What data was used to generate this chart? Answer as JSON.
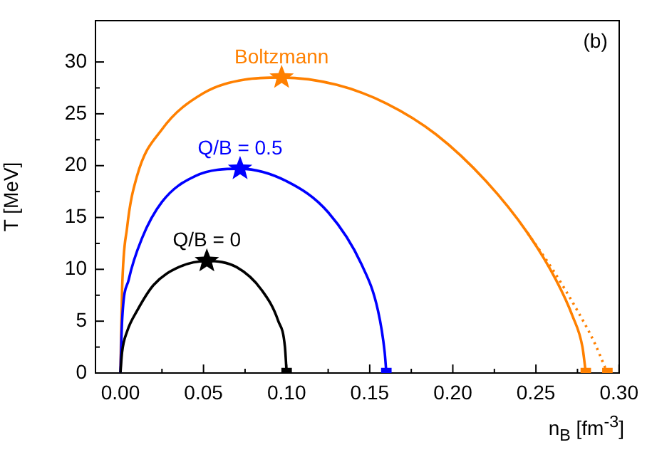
{
  "chart_data": {
    "type": "line",
    "xlabel": "n$_{B}$ [fm$^{-3}$]",
    "ylabel": "T [MeV]",
    "annotations": [
      "(b)"
    ],
    "xlim": [
      -0.015,
      0.3
    ],
    "ylim": [
      0,
      34
    ],
    "xticks": [
      {
        "value": 0,
        "label": "0.00"
      },
      {
        "value": 0.05,
        "label": "0.05"
      },
      {
        "value": 0.1,
        "label": "0.10"
      },
      {
        "value": 0.15,
        "label": "0.15"
      },
      {
        "value": 0.2,
        "label": "0.20"
      },
      {
        "value": 0.25,
        "label": "0.25"
      },
      {
        "value": 0.3,
        "label": "0.30"
      }
    ],
    "yticks": [
      0,
      5,
      10,
      15,
      20,
      25,
      30
    ],
    "grid": false,
    "legend": false,
    "series": [
      {
        "name": "Q/B = 0",
        "color": "#000000",
        "marker": "none",
        "line_style": "solid",
        "x": [
          0,
          0.001,
          0.004,
          0.01,
          0.02,
          0.035,
          0.052,
          0.07,
          0.085,
          0.095,
          0.099,
          0.1
        ],
        "values": [
          0,
          2,
          4,
          6,
          8.5,
          10.2,
          10.8,
          10.2,
          8,
          5,
          2.5,
          0
        ]
      },
      {
        "name": "Q/B = 0.5",
        "color": "#0000ff",
        "marker": "none",
        "line_style": "solid",
        "x": [
          0,
          0.001,
          0.005,
          0.013,
          0.025,
          0.045,
          0.072,
          0.1,
          0.125,
          0.145,
          0.155,
          0.159,
          0.16
        ],
        "values": [
          0,
          5,
          9,
          13,
          16.5,
          19,
          19.7,
          18.5,
          15.5,
          10.5,
          6,
          2,
          0
        ]
      },
      {
        "name": "Boltzmann",
        "color": "#ff8000",
        "marker": "none",
        "line_style": "solid",
        "x": [
          0,
          0.001,
          0.004,
          0.01,
          0.025,
          0.05,
          0.075,
          0.097,
          0.13,
          0.16,
          0.19,
          0.22,
          0.245,
          0.262,
          0.272,
          0.278,
          0.28
        ],
        "values": [
          0,
          8,
          14,
          19,
          23.5,
          27,
          28.3,
          28.5,
          27.8,
          26,
          23,
          18.5,
          13.5,
          9,
          5.5,
          2.5,
          0
        ]
      },
      {
        "color": "#ff8000",
        "marker": "none",
        "line_style": "dotted",
        "x": [
          0.245,
          0.26,
          0.275,
          0.285,
          0.293
        ],
        "values": [
          13.5,
          10,
          6,
          3,
          0
        ]
      },
      {
        "type": "scatter",
        "color": "#000000",
        "marker": "star",
        "x": [
          0.052
        ],
        "values": [
          10.8
        ]
      },
      {
        "type": "scatter",
        "color": "#0000ff",
        "marker": "star",
        "x": [
          0.072
        ],
        "values": [
          19.7
        ]
      },
      {
        "type": "scatter",
        "color": "#ff8000",
        "marker": "star",
        "x": [
          0.097
        ],
        "values": [
          28.5
        ]
      },
      {
        "type": "scatter",
        "color": "#000000",
        "marker": "square",
        "x": [
          0.1
        ],
        "values": [
          0
        ]
      },
      {
        "type": "scatter",
        "color": "#0000ff",
        "marker": "square",
        "x": [
          0.16
        ],
        "values": [
          0
        ]
      },
      {
        "type": "scatter",
        "color": "#ff8000",
        "marker": "square",
        "x": [
          0.28,
          0.293
        ],
        "values": [
          0,
          0
        ]
      }
    ]
  }
}
